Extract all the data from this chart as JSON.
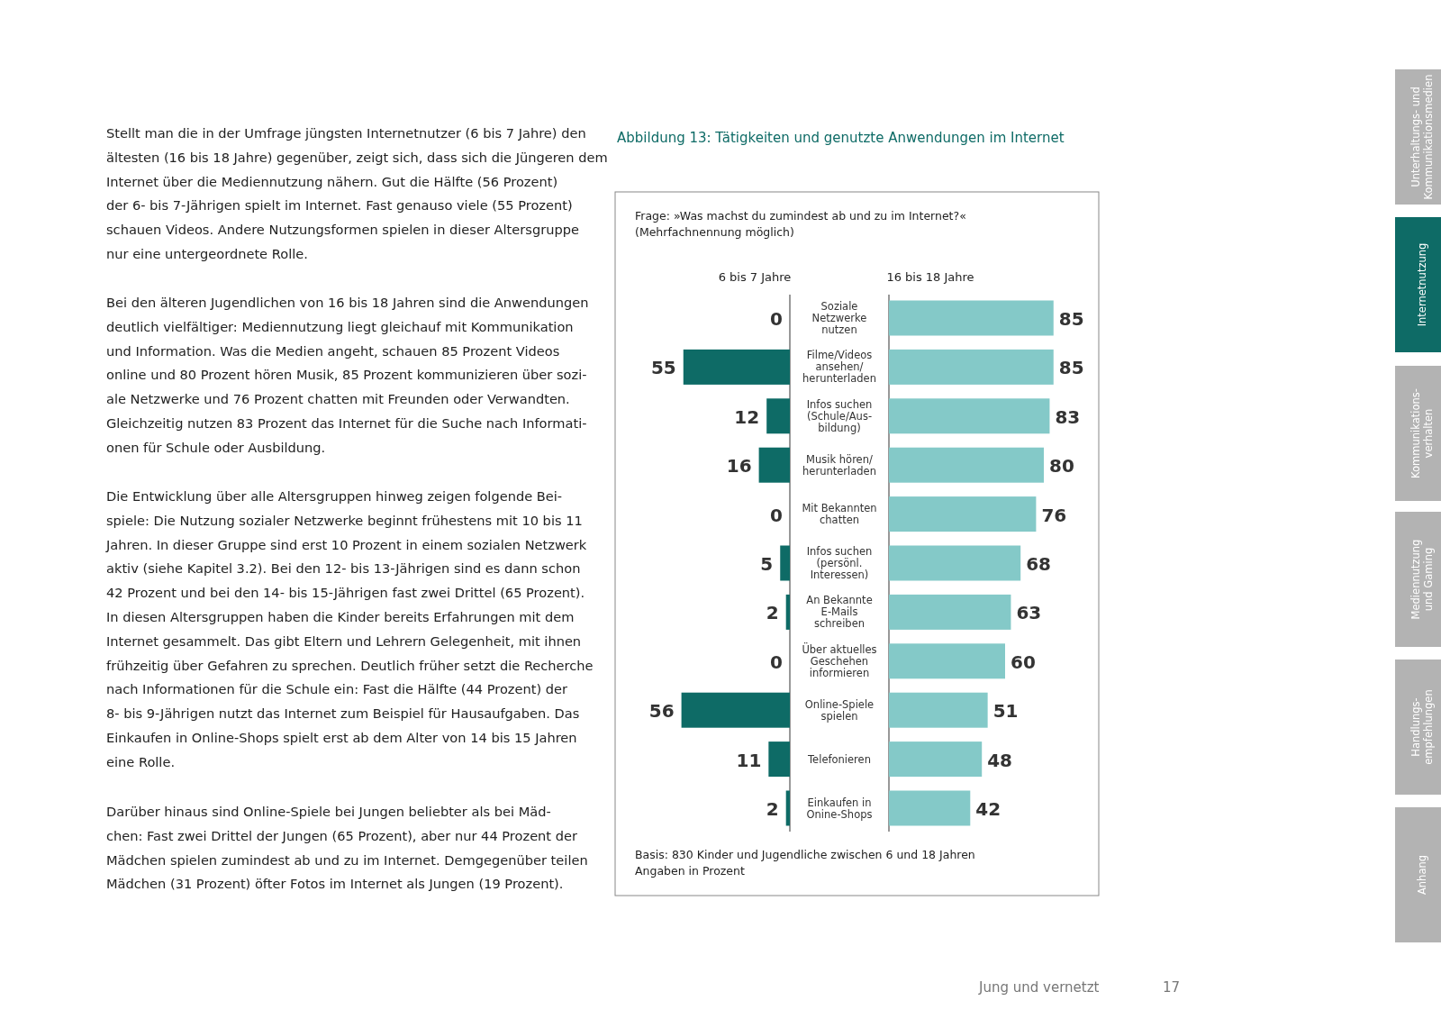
{
  "chart_data": [
    {
      "type": "bar",
      "orientation": "horizontal",
      "title": "Abbildung 13: Tätigkeiten und genutzte Anwendungen im Internet",
      "subtitle": "Frage: »Was machst du zumindest ab und zu im Internet?«\n(Mehrfachnennung möglich)",
      "categories": [
        "Soziale\nNetzwerke\nnutzen",
        "Filme/Videos\nansehen/\nherunterladen",
        "Infos suchen\n(Schule/Aus-\nbildung)",
        "Musik hören/\nherunterladen",
        "Mit Bekannten\nchatten",
        "Infos suchen\n(persönl.\nInteressen)",
        "An Bekannte\nE-Mails\nschreiben",
        "Über aktuelles\nGeschehen\ninformieren",
        "Online-Spiele\nspielen",
        "Telefonieren",
        "Einkaufen in\nOnine-Shops"
      ],
      "series": [
        {
          "name": "6 bis 7 Jahre",
          "color": "#0e6b66",
          "values": [
            0,
            55,
            12,
            16,
            0,
            5,
            2,
            0,
            56,
            11,
            2
          ]
        }
      ],
      "data_labels": true,
      "annotations": [
        "Basis: 830 Kinder und Jugendliche zwischen 6 und 18 Jahren",
        "Angaben in Prozent",
        "Stellt man die in der Umfrage jüngsten Internetnutzer (6 bis 7 Jahre) den\nältesten (16 bis 18 Jahre) gegenüber, zeigt sich, dass sich die Jüngeren dem\nInternet über die Mediennutzung nähern. Gut die Hälfte (56 Prozent)\nder 6- bis 7-Jährigen spielt im Internet. Fast genauso viele (55 Prozent)\nschauen Videos. Andere Nutzungsformen spielen in dieser Altersgruppe\nnur eine untergeordnete Rolle.",
        "Bei den älteren Jugendlichen von 16 bis 18 Jahren sind die Anwendungen\ndeutlich vielfältiger: Mediennutzung liegt gleichauf mit Kommunikation\nund Information. Was die Medien angeht, schauen 85 Prozent Videos\nonline und 80 Prozent hören Musik, 85 Prozent kommunizieren über sozi-\nale Netzwerke und 76 Prozent chatten mit Freunden oder Verwandten.\nGleichzeitig nutzen 83 Prozent das Internet für die Suche nach Informati-\nonen für Schule oder Ausbildung.",
        "Die Entwicklung über alle Altersgruppen hinweg zeigen folgende Bei-\nspiele: Die Nutzung sozialer Netzwerke beginnt frühestens mit 10 bis 11\nJahren. In dieser Gruppe sind erst 10 Prozent in einem sozialen Netzwerk\naktiv (siehe Kapitel 3.2). Bei den 12- bis 13-Jährigen sind es dann schon\n42 Prozent und bei den 14- bis 15-Jährigen fast zwei Drittel (65 Prozent).\nIn diesen Altersgruppen haben die Kinder bereits Erfahrungen mit dem\nInternet gesammelt. Das gibt Eltern und Lehrern Gelegenheit, mit ihnen\nfrühzeitig über Gefahren zu sprechen. Deutlich früher setzt die Recherche\nnach Informationen für die Schule ein: Fast die Hälfte (44 Prozent) der\n8- bis 9-Jährigen nutzt das Internet zum Beispiel für Hausaufgaben. Das\nEinkaufen in Online-Shops spielt erst ab dem Alter von 14 bis 15 Jahren\neine Rolle.",
        "Darüber hinaus sind Online-Spiele bei Jungen beliebter als bei Mäd-\nchen: Fast zwei Drittel der Jungen (65 Prozent), aber nur 44 Prozent der\nMädchen spielen zumindest ab und zu im Internet. Demgegenüber teilen\nMädchen (31 Prozent) öfter Fotos im Internet als Jungen (19 Prozent).",
        "Jung und vernetzt",
        "17",
        "Unterhaltungs- und\nKommunikationsmedien",
        "Internetnutzung",
        "Kommunikations-\nverhalten",
        "Mediennutzung\nund Gaming",
        "Handlungs-\nempfehlungen",
        "Anhang"
      ]
    },
    {
      "type": "bar",
      "orientation": "horizontal",
      "categories": [
        null,
        null,
        null,
        null,
        null,
        null,
        null,
        null,
        null,
        null,
        null
      ],
      "series": [
        {
          "name": "16 bis 18 Jahre",
          "color": "#84c9c8",
          "values": [
            85,
            85,
            83,
            80,
            76,
            68,
            63,
            60,
            51,
            48,
            42
          ]
        }
      ],
      "data_labels": true
    }
  ]
}
